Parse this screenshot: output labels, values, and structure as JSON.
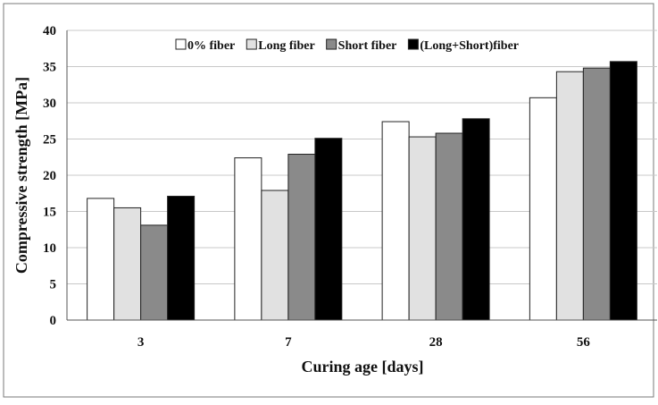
{
  "chart_data": {
    "type": "bar",
    "xlabel": "Curing age [days]",
    "ylabel": "Compressive strength [MPa]",
    "ylim": [
      0,
      40
    ],
    "yticks": [
      0,
      5,
      10,
      15,
      20,
      25,
      30,
      35,
      40
    ],
    "grid": "horizontal",
    "legend_position": "top",
    "categories": [
      "3",
      "7",
      "28",
      "56"
    ],
    "series": [
      {
        "name": "0% fiber",
        "color": "#ffffff",
        "values": [
          16.8,
          22.4,
          27.4,
          30.7
        ]
      },
      {
        "name": "Long fiber",
        "color": "#e1e1e1",
        "values": [
          15.5,
          17.9,
          25.3,
          34.3
        ]
      },
      {
        "name": "Short fiber",
        "color": "#8a8a8a",
        "values": [
          13.1,
          22.9,
          25.8,
          34.8
        ]
      },
      {
        "name": "(Long+Short)fiber",
        "color": "#000000",
        "values": [
          17.1,
          25.1,
          27.8,
          35.7
        ]
      }
    ]
  }
}
